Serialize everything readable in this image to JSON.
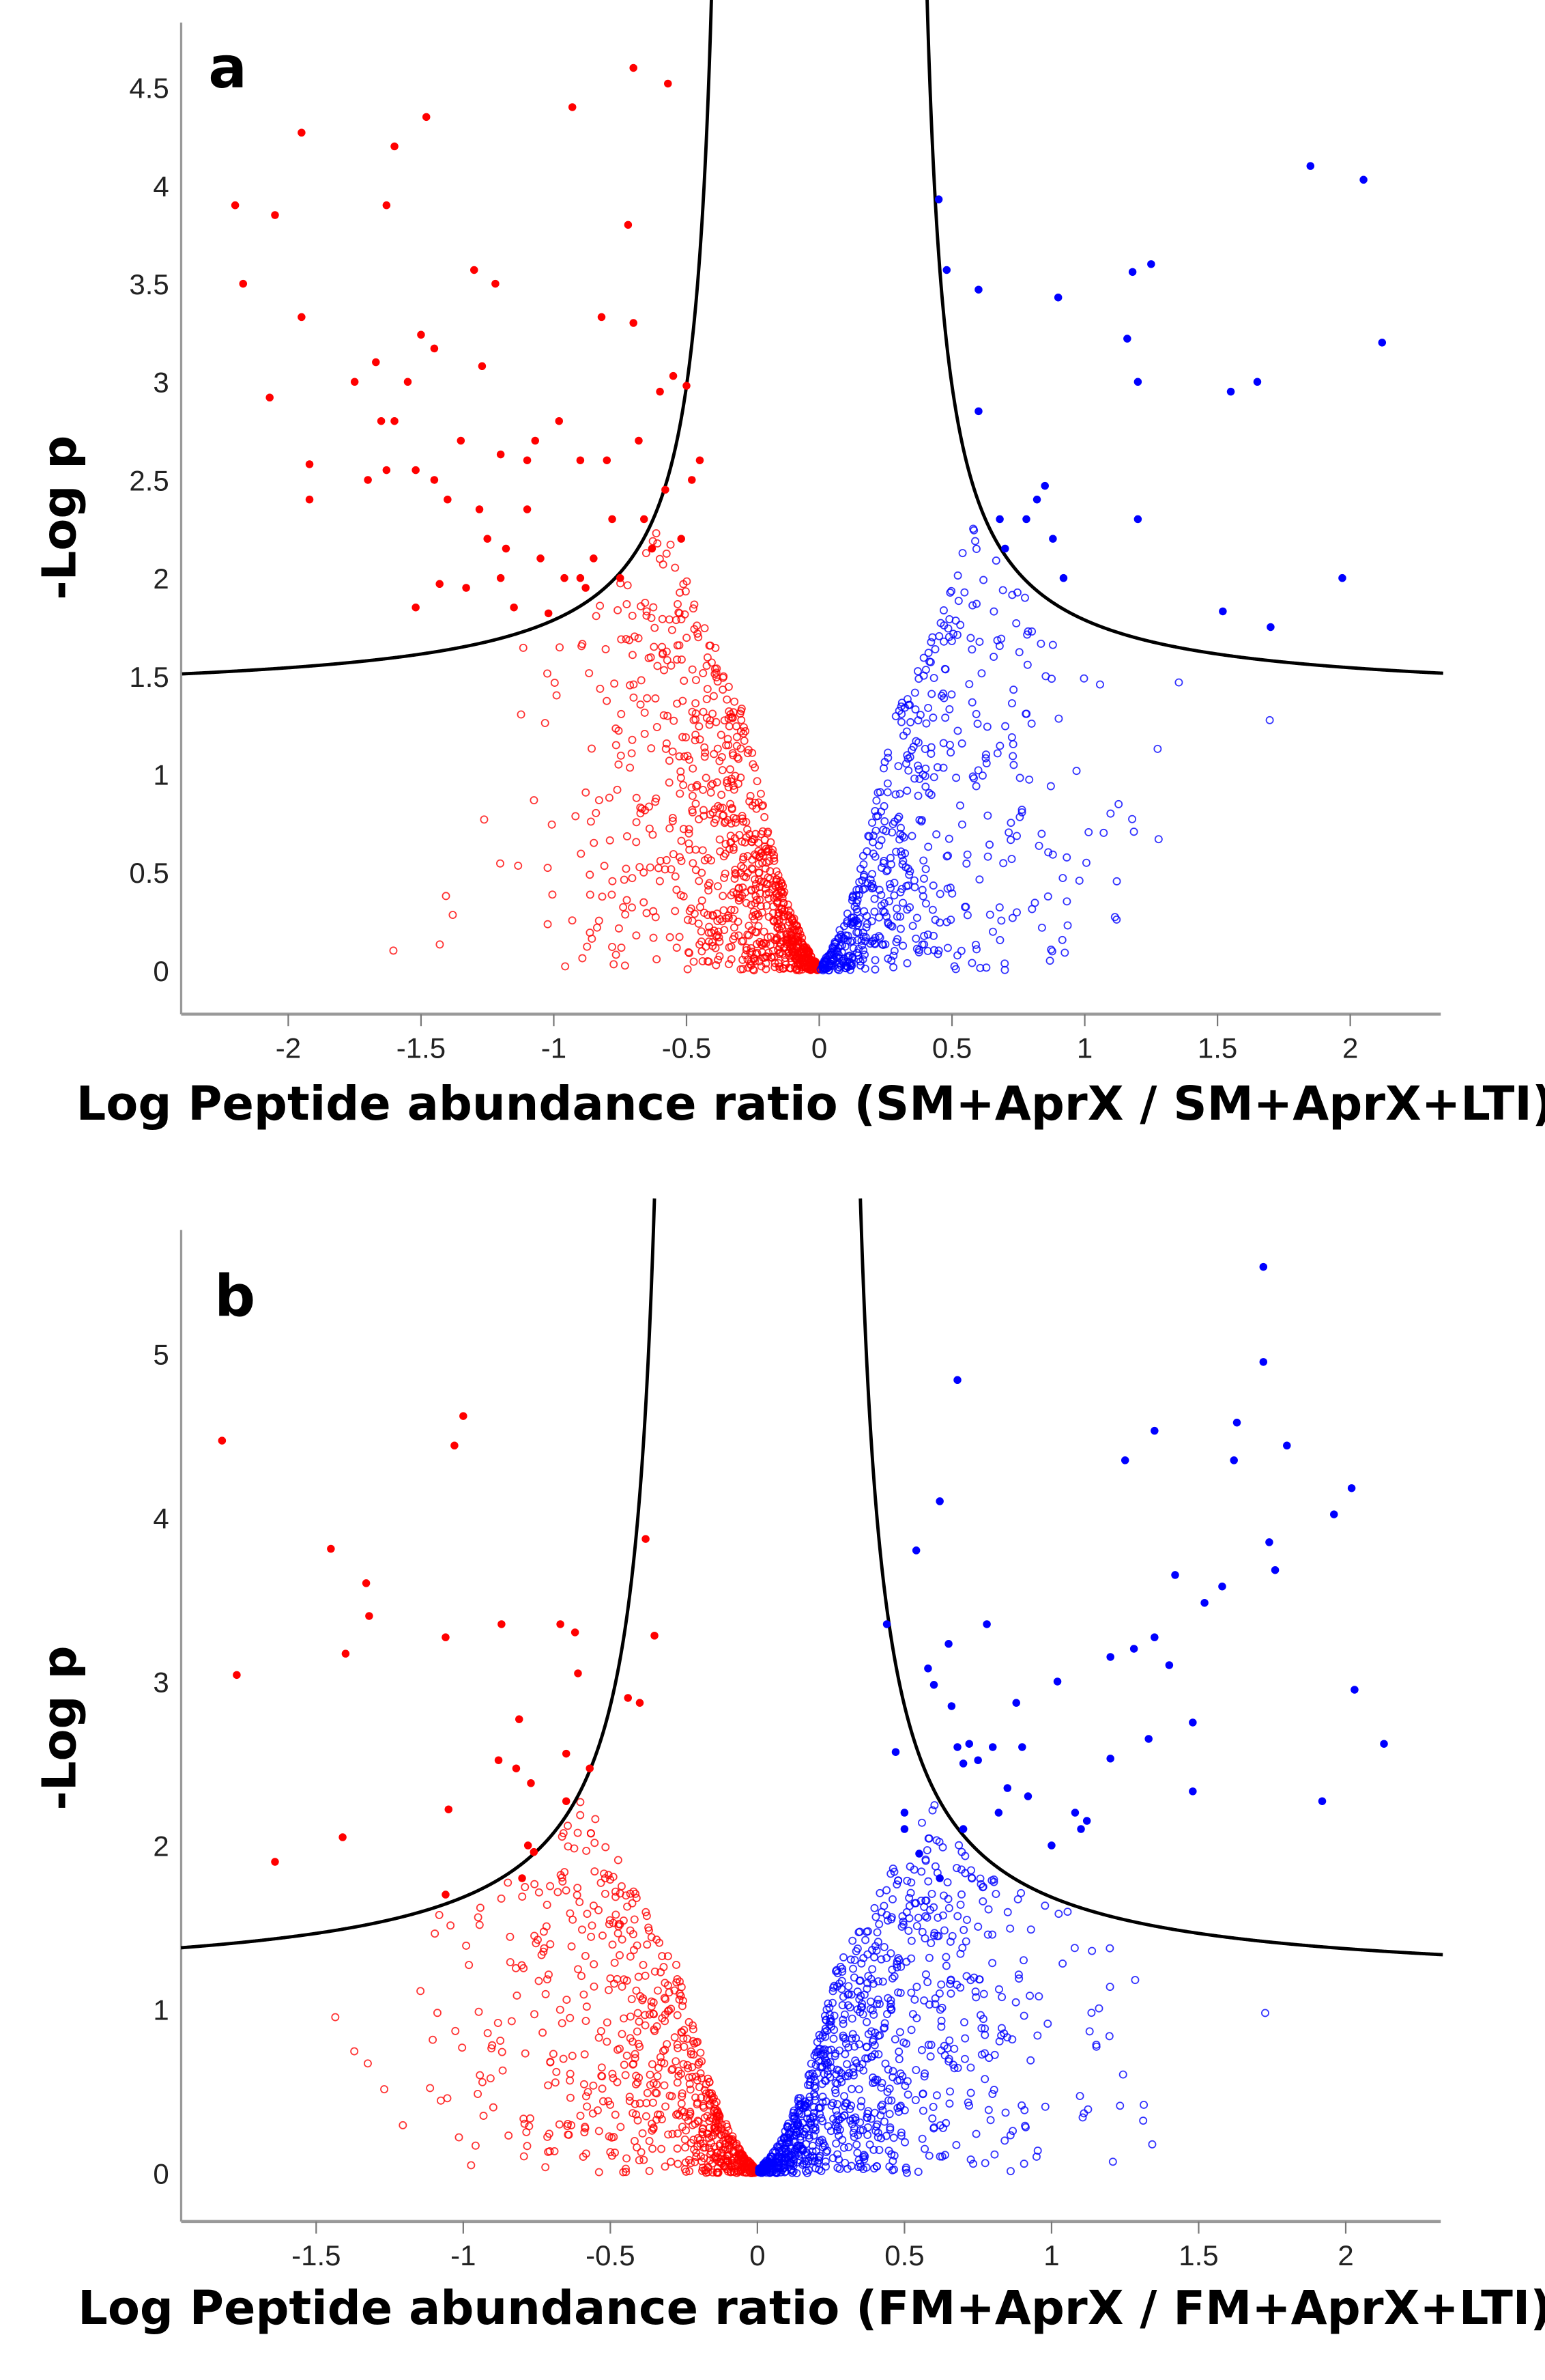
{
  "chart_data": [
    {
      "type": "scatter",
      "panel_label": "a",
      "xlabel": "Log Peptide abundance ratio (SM+AprX / SM+AprX+LTI)",
      "ylabel": "-Log p",
      "xlim": [
        -2.4,
        2.35
      ],
      "ylim": [
        -0.2,
        4.85
      ],
      "xticks": [
        "-2",
        "-1.5",
        "-1",
        "-0.5",
        "0",
        "0.5",
        "1",
        "1.5",
        "2"
      ],
      "yticks": [
        "0",
        "0.5",
        "1",
        "1.5",
        "2",
        "2.5",
        "3",
        "3.5",
        "4",
        "4.5"
      ],
      "threshold_curve": {
        "x0": 0.33,
        "k": 0.272,
        "c": 1.38
      },
      "colors": {
        "down": "#ff0000",
        "up": "#0000ff",
        "curve": "#000000"
      },
      "nonsignificant": {
        "left_count": 900,
        "right_count": 550
      },
      "series": [
        {
          "name": "significant-down",
          "color": "#ff0000",
          "filled": true,
          "points": [
            [
              -2.2,
              3.9
            ],
            [
              -2.17,
              3.5
            ],
            [
              -2.05,
              3.85
            ],
            [
              -1.95,
              4.27
            ],
            [
              -1.95,
              3.33
            ],
            [
              -1.92,
              2.58
            ],
            [
              -1.92,
              2.4
            ],
            [
              -2.07,
              2.92
            ],
            [
              -1.75,
              3.0
            ],
            [
              -1.7,
              2.5
            ],
            [
              -1.67,
              3.1
            ],
            [
              -1.65,
              2.8
            ],
            [
              -1.63,
              3.9
            ],
            [
              -1.6,
              4.2
            ],
            [
              -1.6,
              2.8
            ],
            [
              -1.63,
              2.55
            ],
            [
              -1.55,
              3.0
            ],
            [
              -1.52,
              2.55
            ],
            [
              -1.5,
              3.24
            ],
            [
              -1.48,
              4.35
            ],
            [
              -1.45,
              3.17
            ],
            [
              -1.45,
              2.5
            ],
            [
              -1.4,
              2.4
            ],
            [
              -1.43,
              1.97
            ],
            [
              -1.52,
              1.85
            ],
            [
              -1.35,
              2.7
            ],
            [
              -1.33,
              1.95
            ],
            [
              -1.3,
              3.57
            ],
            [
              -1.28,
              2.35
            ],
            [
              -1.27,
              3.08
            ],
            [
              -1.25,
              2.2
            ],
            [
              -1.22,
              3.5
            ],
            [
              -1.2,
              2.63
            ],
            [
              -1.2,
              2.0
            ],
            [
              -1.18,
              2.15
            ],
            [
              -1.15,
              1.85
            ],
            [
              -1.1,
              2.35
            ],
            [
              -1.1,
              2.6
            ],
            [
              -1.07,
              2.7
            ],
            [
              -1.05,
              2.1
            ],
            [
              -1.02,
              1.82
            ],
            [
              -0.98,
              2.8
            ],
            [
              -0.96,
              2.0
            ],
            [
              -0.93,
              4.4
            ],
            [
              -0.9,
              2.0
            ],
            [
              -0.9,
              2.6
            ],
            [
              -0.88,
              1.95
            ],
            [
              -0.85,
              2.1
            ],
            [
              -0.82,
              3.33
            ],
            [
              -0.8,
              2.6
            ],
            [
              -0.78,
              2.3
            ],
            [
              -0.75,
              2.0
            ],
            [
              -0.72,
              3.8
            ],
            [
              -0.7,
              4.6
            ],
            [
              -0.7,
              3.3
            ],
            [
              -0.68,
              2.7
            ],
            [
              -0.66,
              2.3
            ],
            [
              -0.63,
              2.15
            ],
            [
              -0.6,
              2.95
            ],
            [
              -0.58,
              2.45
            ],
            [
              -0.57,
              4.52
            ],
            [
              -0.55,
              3.03
            ],
            [
              -0.52,
              2.2
            ],
            [
              -0.5,
              2.98
            ],
            [
              -0.48,
              2.5
            ],
            [
              -0.45,
              2.6
            ]
          ]
        },
        {
          "name": "significant-up",
          "color": "#0000ff",
          "filled": true,
          "points": [
            [
              0.45,
              3.93
            ],
            [
              0.48,
              3.57
            ],
            [
              0.6,
              3.47
            ],
            [
              0.6,
              2.85
            ],
            [
              0.68,
              2.3
            ],
            [
              0.7,
              2.15
            ],
            [
              0.78,
              2.3
            ],
            [
              0.82,
              2.4
            ],
            [
              0.85,
              2.47
            ],
            [
              0.88,
              2.2
            ],
            [
              0.9,
              3.43
            ],
            [
              0.92,
              2.0
            ],
            [
              1.16,
              3.22
            ],
            [
              1.18,
              3.56
            ],
            [
              1.2,
              3.0
            ],
            [
              1.2,
              2.3
            ],
            [
              1.25,
              3.6
            ],
            [
              1.52,
              1.83
            ],
            [
              1.55,
              2.95
            ],
            [
              1.65,
              3.0
            ],
            [
              1.7,
              1.75
            ],
            [
              1.85,
              4.1
            ],
            [
              1.97,
              2.0
            ],
            [
              2.05,
              4.03
            ],
            [
              2.12,
              3.2
            ]
          ]
        }
      ]
    },
    {
      "type": "scatter",
      "panel_label": "b",
      "xlabel": "Log Peptide abundance ratio (FM+AprX / FM+AprX+LTI)",
      "ylabel": "-Log p",
      "xlim": [
        -1.96,
        2.33
      ],
      "ylim": [
        -0.3,
        5.75
      ],
      "xticks": [
        "-1.5",
        "-1",
        "-0.5",
        "0",
        "0.5",
        "1",
        "1.5",
        "2"
      ],
      "yticks": [
        "0",
        "1",
        "2",
        "3",
        "4",
        "5"
      ],
      "threshold_curve": {
        "x0": 0.267,
        "k": 0.399,
        "c": 1.14
      },
      "colors": {
        "down": "#ff0000",
        "up": "#0000ff",
        "curve": "#000000"
      },
      "nonsignificant": {
        "left_count": 700,
        "right_count": 950
      },
      "series": [
        {
          "name": "significant-down",
          "color": "#ff0000",
          "filled": true,
          "points": [
            [
              -1.82,
              4.47
            ],
            [
              -1.77,
              3.04
            ],
            [
              -1.64,
              1.9
            ],
            [
              -1.45,
              3.81
            ],
            [
              -1.41,
              2.05
            ],
            [
              -1.4,
              3.17
            ],
            [
              -1.33,
              3.6
            ],
            [
              -1.32,
              3.4
            ],
            [
              -1.06,
              3.27
            ],
            [
              -1.06,
              1.7
            ],
            [
              -1.05,
              2.22
            ],
            [
              -1.03,
              4.44
            ],
            [
              -1.0,
              4.62
            ],
            [
              -0.87,
              3.35
            ],
            [
              -0.88,
              2.52
            ],
            [
              -0.82,
              2.47
            ],
            [
              -0.81,
              2.77
            ],
            [
              -0.8,
              1.8
            ],
            [
              -0.78,
              2.0
            ],
            [
              -0.76,
              1.96
            ],
            [
              -0.77,
              2.38
            ],
            [
              -0.67,
              3.35
            ],
            [
              -0.65,
              2.56
            ],
            [
              -0.65,
              2.27
            ],
            [
              -0.62,
              3.3
            ],
            [
              -0.61,
              3.05
            ],
            [
              -0.57,
              2.47
            ],
            [
              -0.44,
              2.9
            ],
            [
              -0.4,
              2.87
            ],
            [
              -0.38,
              3.87
            ],
            [
              -0.35,
              3.28
            ]
          ]
        },
        {
          "name": "significant-up",
          "color": "#0000ff",
          "filled": true,
          "points": [
            [
              0.44,
              3.35
            ],
            [
              0.47,
              2.57
            ],
            [
              0.5,
              2.2
            ],
            [
              0.54,
              3.8
            ],
            [
              0.58,
              3.08
            ],
            [
              0.6,
              2.98
            ],
            [
              0.62,
              4.1
            ],
            [
              0.65,
              3.23
            ],
            [
              0.66,
              2.85
            ],
            [
              0.68,
              4.84
            ],
            [
              0.68,
              2.6
            ],
            [
              0.7,
              2.5
            ],
            [
              0.72,
              2.62
            ],
            [
              0.75,
              2.52
            ],
            [
              0.78,
              3.35
            ],
            [
              0.8,
              2.6
            ],
            [
              0.82,
              2.2
            ],
            [
              0.85,
              2.35
            ],
            [
              0.88,
              2.87
            ],
            [
              0.9,
              2.6
            ],
            [
              0.92,
              2.3
            ],
            [
              1.0,
              2.0
            ],
            [
              1.02,
              3.0
            ],
            [
              1.08,
              2.2
            ],
            [
              1.1,
              2.1
            ],
            [
              1.12,
              2.15
            ],
            [
              1.2,
              3.15
            ],
            [
              1.2,
              2.53
            ],
            [
              1.25,
              4.35
            ],
            [
              1.28,
              3.2
            ],
            [
              1.33,
              2.65
            ],
            [
              1.35,
              4.53
            ],
            [
              1.35,
              3.27
            ],
            [
              1.4,
              3.1
            ],
            [
              1.42,
              3.65
            ],
            [
              1.48,
              2.33
            ],
            [
              1.48,
              2.75
            ],
            [
              1.52,
              3.48
            ],
            [
              1.58,
              3.58
            ],
            [
              1.62,
              4.35
            ],
            [
              1.63,
              4.58
            ],
            [
              1.72,
              4.95
            ],
            [
              1.72,
              5.53
            ],
            [
              1.74,
              3.85
            ],
            [
              1.76,
              3.68
            ],
            [
              1.8,
              4.44
            ],
            [
              1.92,
              2.27
            ],
            [
              1.96,
              4.02
            ],
            [
              2.02,
              4.18
            ],
            [
              2.03,
              2.95
            ],
            [
              2.13,
              2.62
            ],
            [
              0.7,
              2.1
            ],
            [
              0.55,
              1.95
            ],
            [
              0.62,
              1.8
            ],
            [
              0.5,
              2.1
            ]
          ]
        }
      ]
    }
  ]
}
